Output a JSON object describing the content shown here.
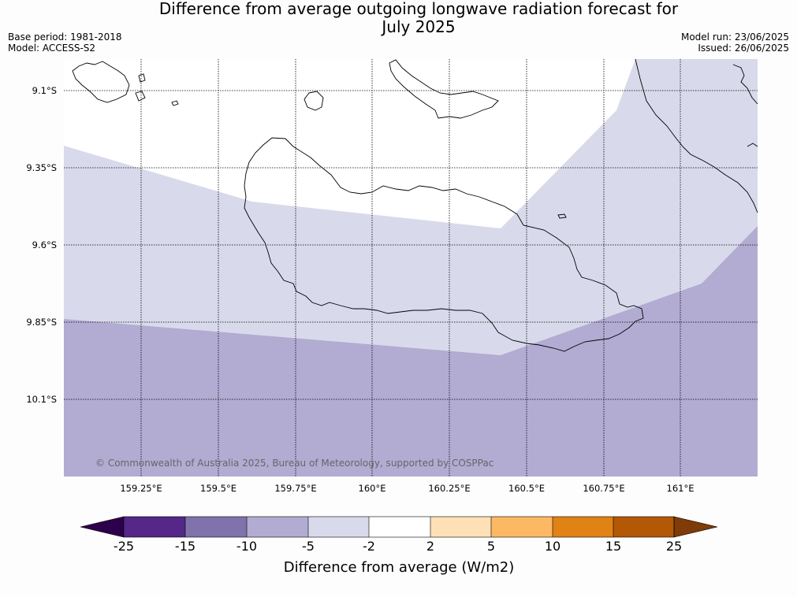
{
  "title_line1": "Difference from average outgoing longwave radiation forecast for",
  "title_line2": "July 2025",
  "base_period": "Base period: 1981-2018",
  "model": "Model: ACCESS-S2",
  "model_run": "Model run: 23/06/2025",
  "issued": "Issued: 26/06/2025",
  "lat_labels": [
    "9.1°S",
    "9.35°S",
    "9.6°S",
    "9.85°S",
    "10.1°S"
  ],
  "lon_labels": [
    "159.25°E",
    "159.5°E",
    "159.75°E",
    "160°E",
    "160.25°E",
    "160.5°E",
    "160.75°E",
    "161°E"
  ],
  "copyright": "© Commonwealth of Australia 2025, Bureau of Meteorology, supported by COSPPac",
  "colorbar": {
    "ticks": [
      "-25",
      "-15",
      "-10",
      "-5",
      "-2",
      "2",
      "5",
      "10",
      "15",
      "25"
    ],
    "label": "Difference from average (W/m2)",
    "under_color": "#2d004b",
    "over_color": "#7f3b08",
    "colors": [
      "#542788",
      "#8073ac",
      "#b2abd2",
      "#d8daeb",
      "#ffffff",
      "#fee0b6",
      "#fdb863",
      "#e08214",
      "#b35806"
    ]
  },
  "map_colors": {
    "minus_5_to_minus_2": "#d8daeb",
    "minus_10_to_minus_5": "#b2abd2",
    "near_zero": "#ffffff"
  }
}
